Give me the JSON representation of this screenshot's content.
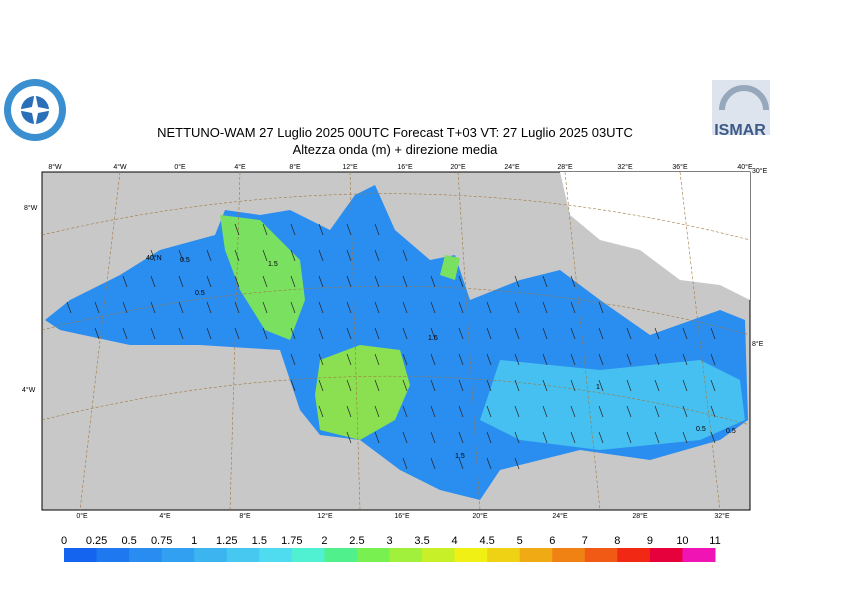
{
  "title": "NETTUNO-WAM  27  Luglio   2025 00UTC Forecast T+03 VT: 27  Luglio   2025 03UTC",
  "subtitle": "Altezza onda (m) + direzione media",
  "logo": "ISMAR",
  "top_lon_labels": [
    "8°W",
    "4°W",
    "0°E",
    "4°E",
    "8°E",
    "12°E",
    "16°E",
    "20°E",
    "24°E",
    "28°E",
    "32°E",
    "36°E",
    "40°E"
  ],
  "bottom_lon_labels": [
    "0°E",
    "4°E",
    "8°E",
    "12°E",
    "16°E",
    "20°E",
    "24°E",
    "28°E",
    "32°E"
  ],
  "left_lat_labels": [
    "8°W",
    "40°N",
    "4°W"
  ],
  "right_lat_labels": [
    "30°E",
    "8°E"
  ],
  "contour_labels": [
    "0.5",
    "0.5",
    "1.5",
    "1.5",
    "1",
    "0.5",
    "0.5",
    "1.5"
  ],
  "colorbar": {
    "labels": [
      "0",
      "0.25",
      "0.5",
      "0.75",
      "1",
      "1.25",
      "1.5",
      "1.75",
      "2",
      "2.5",
      "3",
      "3.5",
      "4",
      "4.5",
      "5",
      "6",
      "7",
      "8",
      "9",
      "10",
      "11"
    ],
    "colors": [
      "#1464f0",
      "#1e78f0",
      "#288cf0",
      "#32a0f0",
      "#3cb4f0",
      "#46c8f0",
      "#50dcf0",
      "#50f0d2",
      "#50f08c",
      "#78f050",
      "#a0f03c",
      "#c8f028",
      "#f0f014",
      "#f0d214",
      "#f0aa14",
      "#f08214",
      "#f05a14",
      "#f02814",
      "#e6003c",
      "#f014b4"
    ]
  }
}
